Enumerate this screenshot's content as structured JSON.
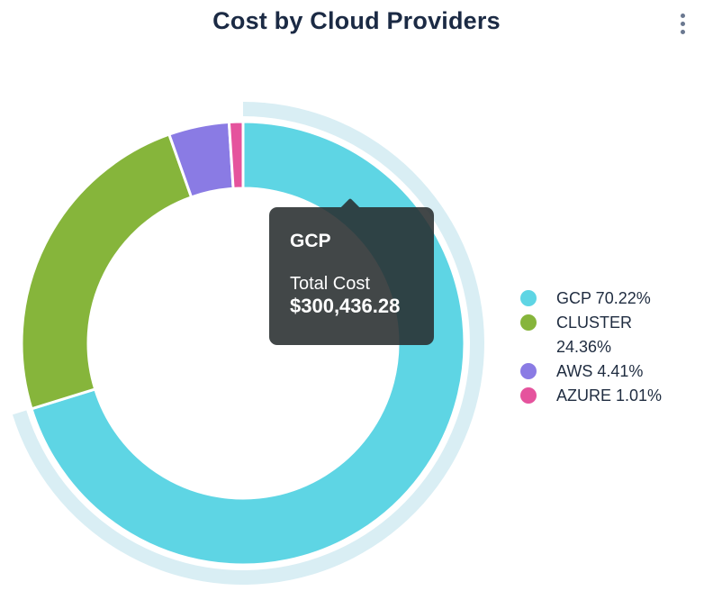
{
  "header": {
    "title": "Cost by Cloud Providers",
    "menu_icon": "kebab-vertical"
  },
  "chart_data": {
    "type": "pie",
    "subtype": "donut",
    "title": "Cost by Cloud Providers",
    "legend_position": "right",
    "unit": "%",
    "series": [
      {
        "name": "GCP",
        "value": 70.22,
        "pct_label": "70.22%",
        "color": "#5ED5E4",
        "highlighted": true
      },
      {
        "name": "CLUSTER",
        "value": 24.36,
        "pct_label": "24.36%",
        "color": "#86B53B",
        "highlighted": false
      },
      {
        "name": "AWS",
        "value": 4.41,
        "pct_label": "4.41%",
        "color": "#8A7BE4",
        "highlighted": false
      },
      {
        "name": "AZURE",
        "value": 1.01,
        "pct_label": "1.01%",
        "color": "#E5539D",
        "highlighted": false
      }
    ],
    "legend_labels": [
      "GCP 70.22%",
      "CLUSTER 24.36%",
      "AWS 4.41%",
      "AZURE 1.01%"
    ]
  },
  "tooltip": {
    "series_name": "GCP",
    "label": "Total Cost",
    "value": "$300,436.28"
  },
  "colors": {
    "highlight_halo": "#D9EEF4",
    "title_text": "#1B2A44",
    "legend_text": "#1F2C40",
    "tooltip_bg": "rgba(40,45,47,0.88)",
    "menu_dots": "#6A7890",
    "background": "#FFFFFF"
  }
}
